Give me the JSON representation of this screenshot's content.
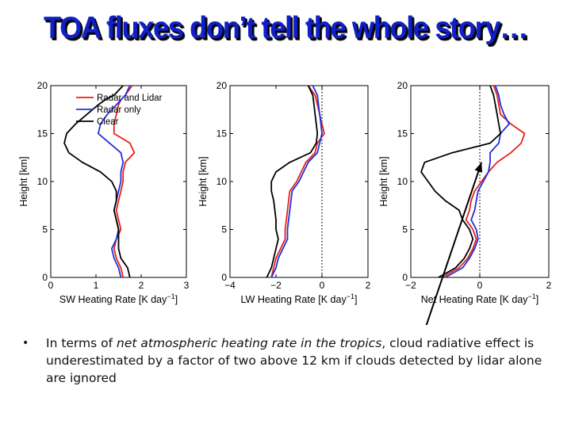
{
  "slide": {
    "title": "TOA fluxes don’t tell the whole story…",
    "bullet_symbol": "•",
    "bullet": {
      "part1": "In terms of ",
      "emphasis": "net atmospheric heating rate in the tropics",
      "part2": ", cloud radiative effect is underestimated by a factor of two above 12 km if clouds detected by lidar alone are ignored"
    }
  },
  "colors": {
    "radar_and_lidar": "#e8201c",
    "radar_only": "#2030d8",
    "clear": "#000000",
    "title": "#1020c8"
  },
  "chart_data": [
    {
      "type": "line",
      "xlabel": "SW Heating Rate [K day",
      "xlabel_sup": "−1",
      "ylabel": "Height [km]",
      "xlim": [
        0,
        3
      ],
      "ylim": [
        0,
        20
      ],
      "xticks": [
        0,
        1,
        2,
        3
      ],
      "yticks": [
        0,
        5,
        10,
        15,
        20
      ],
      "legend": {
        "placement": "top-right",
        "entries": [
          "Radar and Lidar",
          "Radar only",
          "Clear"
        ]
      },
      "series": [
        {
          "name": "Radar and Lidar",
          "x": [
            1.6,
            1.55,
            1.45,
            1.4,
            1.45,
            1.55,
            1.5,
            1.45,
            1.5,
            1.55,
            1.6,
            1.6,
            1.65,
            1.85,
            1.75,
            1.4,
            1.4,
            1.45,
            1.5,
            1.55,
            1.65,
            1.8
          ],
          "y": [
            0,
            1,
            2,
            3,
            4,
            5,
            6,
            7,
            8,
            9,
            10,
            11,
            12,
            13,
            14,
            15,
            16,
            17,
            18,
            18.5,
            19,
            20
          ]
        },
        {
          "name": "Radar only",
          "x": [
            1.55,
            1.5,
            1.4,
            1.35,
            1.45,
            1.5,
            1.45,
            1.4,
            1.45,
            1.5,
            1.55,
            1.55,
            1.6,
            1.55,
            1.3,
            1.05,
            1.1,
            1.25,
            1.45,
            1.55,
            1.65,
            1.75
          ],
          "y": [
            0,
            1,
            2,
            3,
            4,
            5,
            6,
            7,
            8,
            9,
            10,
            11,
            12,
            13,
            14,
            15,
            16,
            17,
            18,
            18.5,
            19,
            20
          ]
        },
        {
          "name": "Clear",
          "x": [
            1.75,
            1.7,
            1.55,
            1.5,
            1.5,
            1.5,
            1.45,
            1.4,
            1.45,
            1.45,
            1.35,
            1.1,
            0.7,
            0.4,
            0.3,
            0.35,
            0.55,
            0.8,
            1.05,
            1.2,
            1.4,
            1.6
          ],
          "y": [
            0,
            1,
            2,
            3,
            4,
            5,
            6,
            7,
            8,
            9,
            10,
            11,
            12,
            13,
            14,
            15,
            16,
            17,
            18,
            18.5,
            19,
            20
          ]
        }
      ]
    },
    {
      "type": "line",
      "xlabel": "LW Heating Rate [K day",
      "xlabel_sup": "−1",
      "ylabel": "Height [km]",
      "xlim": [
        -4,
        2
      ],
      "ylim": [
        0,
        20
      ],
      "xticks": [
        -4,
        -2,
        0,
        2
      ],
      "yticks": [
        0,
        5,
        10,
        15,
        20
      ],
      "zero_line": true,
      "series": [
        {
          "name": "Radar and Lidar",
          "x": [
            -2.2,
            -2.1,
            -2.0,
            -1.8,
            -1.6,
            -1.6,
            -1.55,
            -1.5,
            -1.45,
            -1.4,
            -1.1,
            -0.9,
            -0.7,
            -0.3,
            -0.2,
            0.1,
            0.0,
            -0.1,
            -0.2,
            -0.3,
            -0.6
          ],
          "y": [
            0,
            1,
            2,
            3,
            4,
            5,
            6,
            7,
            8,
            9,
            10,
            11,
            12,
            13,
            14,
            15,
            16,
            17,
            18,
            19,
            20
          ]
        },
        {
          "name": "Radar only",
          "x": [
            -2.2,
            -2.0,
            -1.9,
            -1.7,
            -1.5,
            -1.5,
            -1.45,
            -1.4,
            -1.35,
            -1.3,
            -1.0,
            -0.8,
            -0.6,
            -0.2,
            -0.1,
            0.0,
            -0.05,
            -0.1,
            -0.15,
            -0.2,
            -0.4
          ],
          "y": [
            0,
            1,
            2,
            3,
            4,
            5,
            6,
            7,
            8,
            9,
            10,
            11,
            12,
            13,
            14,
            15,
            16,
            17,
            18,
            19,
            20
          ]
        },
        {
          "name": "Clear",
          "x": [
            -2.4,
            -2.2,
            -2.1,
            -2.0,
            -1.9,
            -2.0,
            -2.0,
            -2.05,
            -2.1,
            -2.2,
            -2.2,
            -2.0,
            -1.4,
            -0.5,
            -0.25,
            -0.2,
            -0.25,
            -0.3,
            -0.35,
            -0.4,
            -0.6
          ],
          "y": [
            0,
            1,
            2,
            3,
            4,
            5,
            6,
            7,
            8,
            9,
            10,
            11,
            12,
            13,
            14,
            15,
            16,
            17,
            18,
            19,
            20
          ]
        }
      ]
    },
    {
      "type": "line",
      "xlabel": "Net Heating Rate [K day",
      "xlabel_sup": "−1",
      "ylabel": "Height [km]",
      "xlim": [
        -2,
        2
      ],
      "ylim": [
        0,
        20
      ],
      "xticks": [
        -2,
        0,
        2
      ],
      "yticks": [
        0,
        5,
        10,
        15,
        20
      ],
      "zero_line": true,
      "series": [
        {
          "name": "Radar and Lidar",
          "x": [
            -1.1,
            -0.6,
            -0.35,
            -0.2,
            -0.1,
            -0.2,
            -0.4,
            -0.3,
            -0.25,
            -0.15,
            0.05,
            0.25,
            0.5,
            0.9,
            1.2,
            1.3,
            0.9,
            0.6,
            0.55,
            0.5,
            0.4
          ],
          "y": [
            0,
            1,
            2,
            3,
            4,
            5,
            6,
            7,
            8,
            9,
            10,
            11,
            12,
            13,
            14,
            15,
            16,
            17,
            18,
            19,
            20
          ]
        },
        {
          "name": "Radar only",
          "x": [
            -1.0,
            -0.5,
            -0.3,
            -0.15,
            -0.05,
            -0.1,
            -0.25,
            -0.15,
            -0.1,
            -0.05,
            0.1,
            0.25,
            0.3,
            0.3,
            0.55,
            0.6,
            0.85,
            0.7,
            0.6,
            0.55,
            0.45
          ],
          "y": [
            0,
            1,
            2,
            3,
            4,
            5,
            6,
            7,
            8,
            9,
            10,
            11,
            12,
            13,
            14,
            15,
            16,
            17,
            18,
            19,
            20
          ]
        },
        {
          "name": "Clear",
          "x": [
            -1.2,
            -0.7,
            -0.45,
            -0.3,
            -0.2,
            -0.3,
            -0.5,
            -0.6,
            -1.0,
            -1.3,
            -1.5,
            -1.7,
            -1.6,
            -0.8,
            0.3,
            0.6,
            0.55,
            0.5,
            0.45,
            0.4,
            0.3
          ],
          "y": [
            0,
            1,
            2,
            3,
            4,
            5,
            6,
            7,
            8,
            9,
            10,
            11,
            12,
            13,
            14,
            15,
            16,
            17,
            18,
            19,
            20
          ]
        }
      ],
      "annotation": {
        "type": "arrow",
        "from": [
          -1.55,
          -5.0
        ],
        "to": [
          0.05,
          12.0
        ]
      }
    }
  ]
}
